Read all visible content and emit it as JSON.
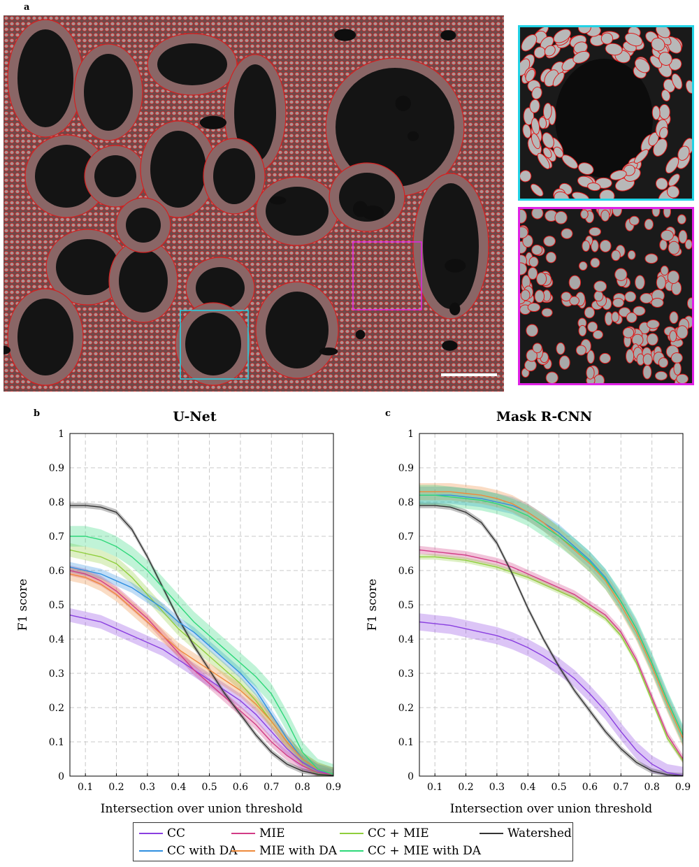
{
  "panel_a_label": "a",
  "panel_b_label": "b",
  "panel_c_label": "c",
  "colors": {
    "CC": "#8a3fe0",
    "MIE": "#d23c86",
    "CC + MIE": "#8fce3c",
    "Watershed": "#333333",
    "CC with DA": "#2f8fe0",
    "MIE with DA": "#ee8a3c",
    "CC + MIE with DA": "#2ed87a",
    "inset_cyan": "#22d3e6",
    "inset_magenta": "#e022e6",
    "outline": "#e01818"
  },
  "legend": {
    "items": [
      "CC",
      "MIE",
      "CC + MIE",
      "Watershed",
      "CC with DA",
      "MIE with DA",
      "CC + MIE with DA"
    ]
  },
  "chart_data": [
    {
      "type": "line",
      "title": "U-Net",
      "xlabel": "Intersection over union threshold",
      "ylabel": "F1 score",
      "xlim": [
        0.05,
        0.9
      ],
      "ylim": [
        0,
        1
      ],
      "xticks": [
        "0.1",
        "0.2",
        "0.3",
        "0.4",
        "0.5",
        "0.6",
        "0.7",
        "0.8",
        "0.9"
      ],
      "yticks": [
        "0",
        "0.1",
        "0.2",
        "0.3",
        "0.4",
        "0.5",
        "0.6",
        "0.7",
        "0.8",
        "0.9",
        "1"
      ],
      "grid": true,
      "x": [
        0.05,
        0.1,
        0.15,
        0.2,
        0.25,
        0.3,
        0.35,
        0.4,
        0.45,
        0.5,
        0.55,
        0.6,
        0.65,
        0.7,
        0.75,
        0.8,
        0.85,
        0.9
      ],
      "series": [
        {
          "name": "CC",
          "values": [
            0.47,
            0.46,
            0.45,
            0.43,
            0.41,
            0.39,
            0.37,
            0.34,
            0.31,
            0.28,
            0.25,
            0.22,
            0.18,
            0.13,
            0.08,
            0.04,
            0.015,
            0.005
          ],
          "band": 0.02
        },
        {
          "name": "MIE",
          "values": [
            0.6,
            0.59,
            0.57,
            0.54,
            0.5,
            0.46,
            0.41,
            0.36,
            0.31,
            0.27,
            0.23,
            0.19,
            0.15,
            0.1,
            0.06,
            0.03,
            0.01,
            0.005
          ],
          "band": 0.015
        },
        {
          "name": "CC + MIE",
          "values": [
            0.66,
            0.65,
            0.64,
            0.62,
            0.58,
            0.53,
            0.48,
            0.43,
            0.39,
            0.35,
            0.31,
            0.27,
            0.22,
            0.16,
            0.1,
            0.05,
            0.02,
            0.005
          ],
          "band": 0.02
        },
        {
          "name": "Watershed",
          "values": [
            0.79,
            0.79,
            0.785,
            0.77,
            0.72,
            0.64,
            0.55,
            0.46,
            0.38,
            0.31,
            0.24,
            0.18,
            0.12,
            0.07,
            0.035,
            0.015,
            0.005,
            0.002
          ],
          "band": 0.008
        },
        {
          "name": "CC with DA",
          "values": [
            0.61,
            0.6,
            0.59,
            0.57,
            0.55,
            0.52,
            0.49,
            0.45,
            0.42,
            0.38,
            0.34,
            0.3,
            0.25,
            0.18,
            0.11,
            0.05,
            0.02,
            0.005
          ],
          "band": 0.015
        },
        {
          "name": "MIE with DA",
          "values": [
            0.59,
            0.58,
            0.56,
            0.53,
            0.49,
            0.45,
            0.41,
            0.37,
            0.34,
            0.31,
            0.28,
            0.25,
            0.21,
            0.16,
            0.1,
            0.05,
            0.02,
            0.005
          ],
          "band": 0.02
        },
        {
          "name": "CC + MIE with DA",
          "values": [
            0.7,
            0.7,
            0.69,
            0.67,
            0.64,
            0.6,
            0.55,
            0.5,
            0.45,
            0.41,
            0.37,
            0.33,
            0.29,
            0.24,
            0.16,
            0.07,
            0.02,
            0.005
          ],
          "band": 0.03
        }
      ]
    },
    {
      "type": "line",
      "title": "Mask R-CNN",
      "xlabel": "Intersection over union threshold",
      "ylabel": "F1 score",
      "xlim": [
        0.05,
        0.9
      ],
      "ylim": [
        0,
        1
      ],
      "xticks": [
        "0.1",
        "0.2",
        "0.3",
        "0.4",
        "0.5",
        "0.6",
        "0.7",
        "0.8",
        "0.9"
      ],
      "yticks": [
        "0",
        "0.1",
        "0.2",
        "0.3",
        "0.4",
        "0.5",
        "0.6",
        "0.7",
        "0.8",
        "0.9",
        "1"
      ],
      "grid": true,
      "x": [
        0.05,
        0.1,
        0.15,
        0.2,
        0.25,
        0.3,
        0.35,
        0.4,
        0.45,
        0.5,
        0.55,
        0.6,
        0.65,
        0.7,
        0.75,
        0.8,
        0.85,
        0.9
      ],
      "series": [
        {
          "name": "CC",
          "values": [
            0.45,
            0.445,
            0.44,
            0.43,
            0.42,
            0.41,
            0.395,
            0.375,
            0.35,
            0.32,
            0.285,
            0.24,
            0.19,
            0.13,
            0.075,
            0.035,
            0.01,
            0.002
          ],
          "band": 0.025
        },
        {
          "name": "MIE",
          "values": [
            0.66,
            0.655,
            0.65,
            0.645,
            0.635,
            0.625,
            0.61,
            0.59,
            0.57,
            0.55,
            0.53,
            0.5,
            0.47,
            0.42,
            0.34,
            0.23,
            0.12,
            0.05
          ],
          "band": 0.012
        },
        {
          "name": "CC + MIE",
          "values": [
            0.64,
            0.64,
            0.635,
            0.63,
            0.62,
            0.61,
            0.595,
            0.58,
            0.56,
            0.54,
            0.52,
            0.49,
            0.46,
            0.41,
            0.33,
            0.22,
            0.11,
            0.045
          ],
          "band": 0.008
        },
        {
          "name": "Watershed",
          "values": [
            0.79,
            0.79,
            0.785,
            0.77,
            0.74,
            0.68,
            0.59,
            0.49,
            0.4,
            0.32,
            0.25,
            0.19,
            0.13,
            0.08,
            0.04,
            0.015,
            0.004,
            0.001
          ],
          "band": 0.008
        },
        {
          "name": "CC with DA",
          "values": [
            0.82,
            0.82,
            0.82,
            0.815,
            0.81,
            0.8,
            0.79,
            0.77,
            0.74,
            0.71,
            0.67,
            0.63,
            0.58,
            0.51,
            0.43,
            0.33,
            0.22,
            0.12
          ],
          "band": 0.025
        },
        {
          "name": "MIE with DA",
          "values": [
            0.83,
            0.83,
            0.83,
            0.825,
            0.82,
            0.81,
            0.795,
            0.77,
            0.74,
            0.7,
            0.66,
            0.62,
            0.57,
            0.5,
            0.42,
            0.32,
            0.21,
            0.11
          ],
          "band": 0.025
        },
        {
          "name": "CC + MIE with DA",
          "values": [
            0.82,
            0.82,
            0.815,
            0.81,
            0.805,
            0.795,
            0.78,
            0.76,
            0.73,
            0.7,
            0.665,
            0.625,
            0.575,
            0.51,
            0.43,
            0.33,
            0.22,
            0.12
          ],
          "band": 0.03
        }
      ]
    }
  ]
}
